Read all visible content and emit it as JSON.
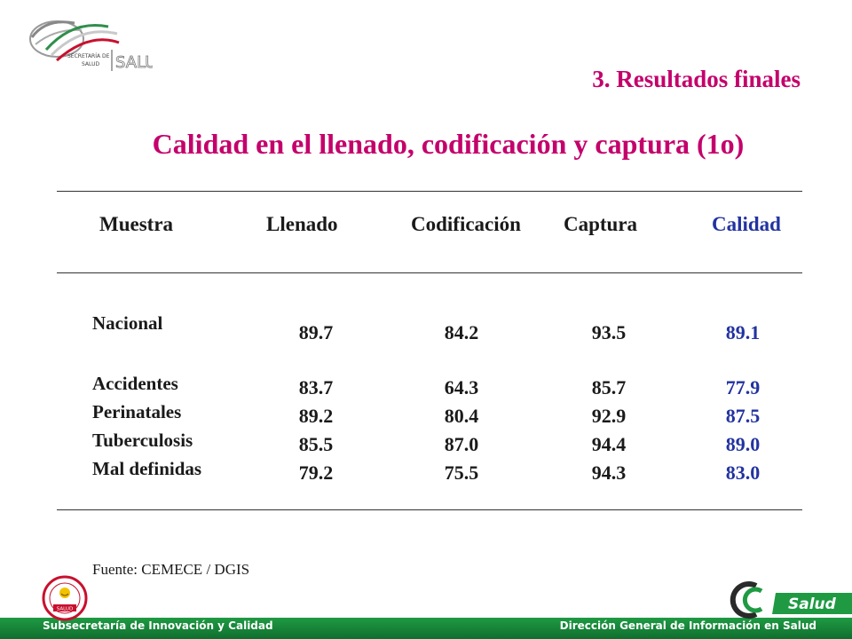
{
  "header": {
    "logo_text_top": "SECRETARÍA DE",
    "logo_text_bottom": "SALUD",
    "logo_wordmark": "SALUD",
    "section_title": "3. Resultados finales",
    "main_title": "Calidad en el llenado, codificación y captura (1o)"
  },
  "table": {
    "columns": [
      "Muestra",
      "Llenado",
      "Codificación",
      "Captura",
      "Calidad"
    ],
    "rows": [
      {
        "label": "Nacional",
        "llenado": "89.7",
        "codificacion": "84.2",
        "captura": "93.5",
        "calidad": "89.1"
      },
      {
        "label": "Accidentes",
        "llenado": "83.7",
        "codificacion": "64.3",
        "captura": "85.7",
        "calidad": "77.9"
      },
      {
        "label": "Perinatales",
        "llenado": "89.2",
        "codificacion": "80.4",
        "captura": "92.9",
        "calidad": "87.5"
      },
      {
        "label": "Tuberculosis",
        "llenado": "85.5",
        "codificacion": "87.0",
        "captura": "94.4",
        "calidad": "89.0"
      },
      {
        "label": "Mal definidas",
        "llenado": "79.2",
        "codificacion": "75.5",
        "captura": "94.3",
        "calidad": "83.0"
      }
    ]
  },
  "source": "Fuente: CEMECE / DGIS",
  "footer": {
    "left": "Subsecretaría de Innovación y Calidad",
    "right": "Dirección General de Información en Salud",
    "brand_logo": "Salud",
    "seal_text": "SALUD"
  },
  "colors": {
    "title": "#c4006b",
    "calidad": "#2233a0",
    "footer_green": "#1f9a43"
  }
}
